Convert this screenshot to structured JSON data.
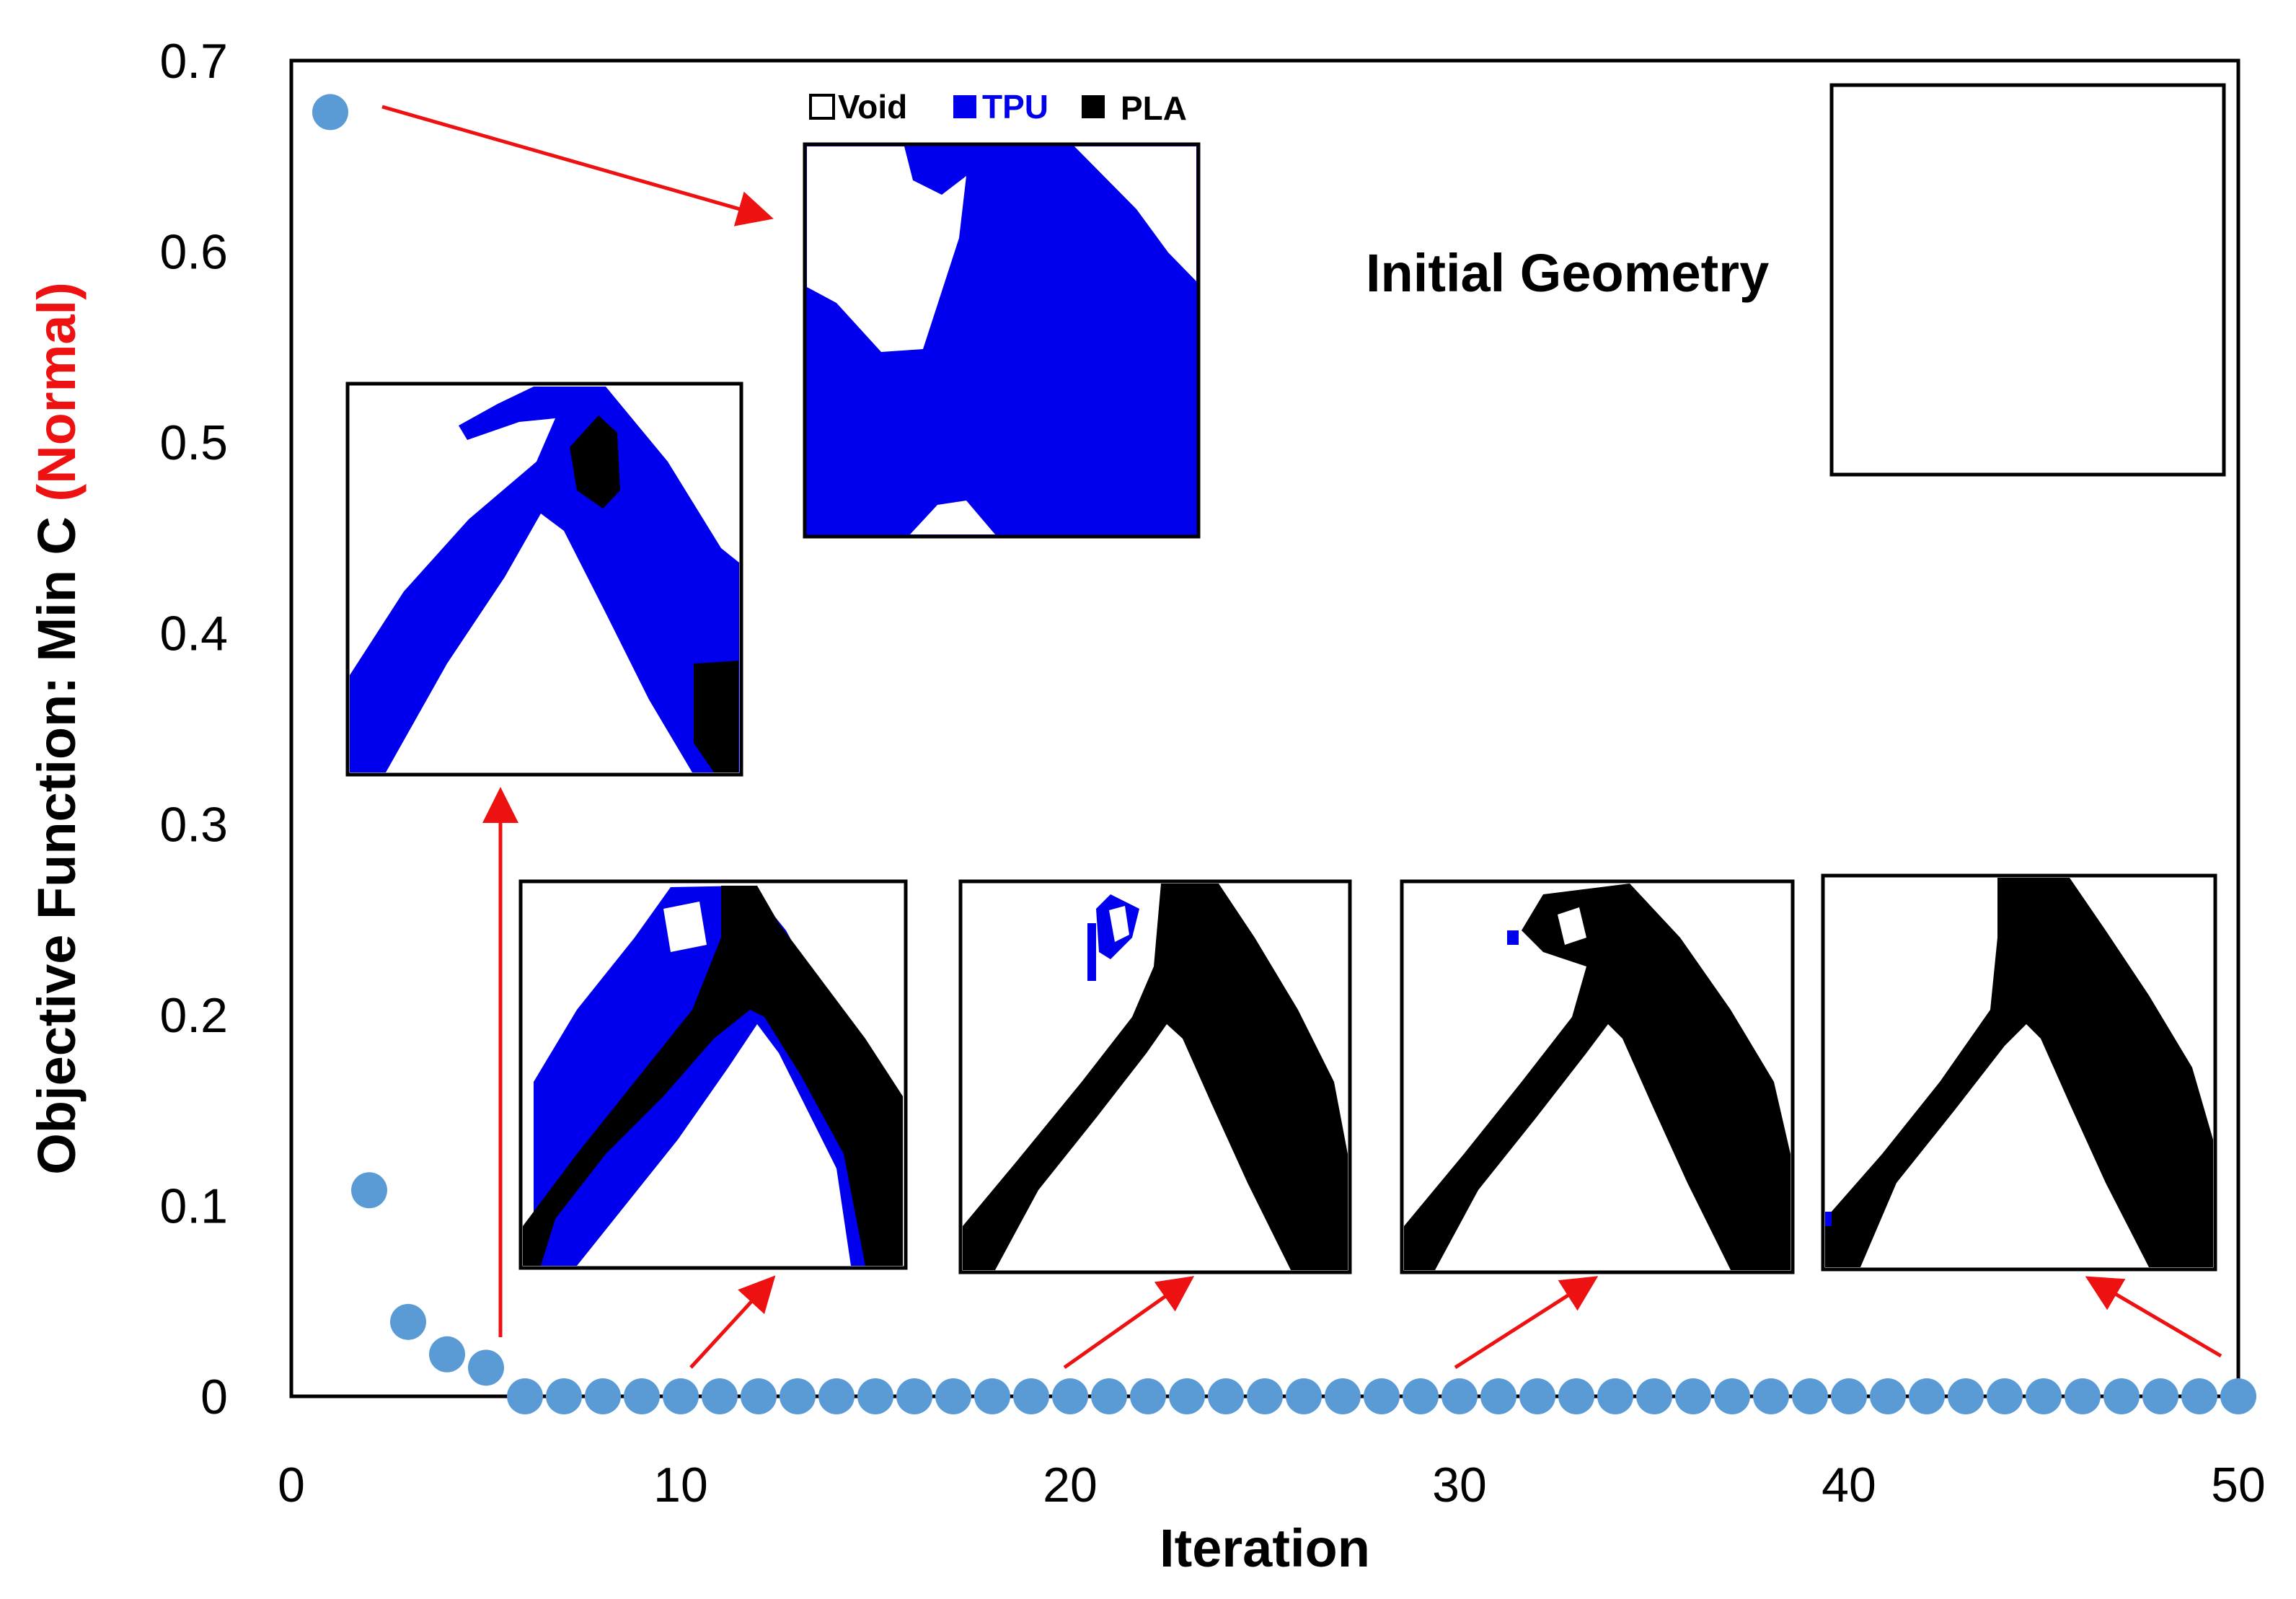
{
  "chart_data": {
    "type": "scatter",
    "xlabel": "Iteration",
    "ylabel": "Objective Function: Min C ",
    "ylabel_emphasis": "(Normal)",
    "xlim": [
      0,
      50
    ],
    "ylim": [
      0,
      0.7
    ],
    "xticks": [
      0,
      10,
      20,
      30,
      40,
      50
    ],
    "yticks": [
      0,
      0.1,
      0.2,
      0.3,
      0.4,
      0.5,
      0.6,
      0.7
    ],
    "grid": false,
    "legend": [
      {
        "label": "Void",
        "color": "#ffffff"
      },
      {
        "label": "TPU",
        "color": "#0000ee"
      },
      {
        "label": "PLA",
        "color": "#000000"
      }
    ],
    "annotation_initial": "Initial Geometry",
    "series": [
      {
        "color": "#5b9bd5",
        "x": [
          1,
          2,
          3,
          4,
          5,
          6,
          7,
          8,
          9,
          10,
          11,
          12,
          13,
          14,
          15,
          16,
          17,
          18,
          19,
          20,
          21,
          22,
          23,
          24,
          25,
          26,
          27,
          28,
          29,
          30,
          31,
          32,
          33,
          34,
          35,
          36,
          37,
          38,
          39,
          40,
          41,
          42,
          43,
          44,
          45,
          46,
          47,
          48,
          49,
          50
        ],
        "y": [
          0.673,
          0.108,
          0.039,
          0.022,
          0.015,
          0,
          0,
          0,
          0,
          0,
          0,
          0,
          0,
          0,
          0,
          0,
          0,
          0,
          0,
          0,
          0,
          0,
          0,
          0,
          0,
          0,
          0,
          0,
          0,
          0,
          0,
          0,
          0,
          0,
          0,
          0,
          0,
          0,
          0,
          0,
          0,
          0,
          0,
          0,
          0,
          0,
          0,
          0,
          0,
          0
        ]
      }
    ]
  }
}
